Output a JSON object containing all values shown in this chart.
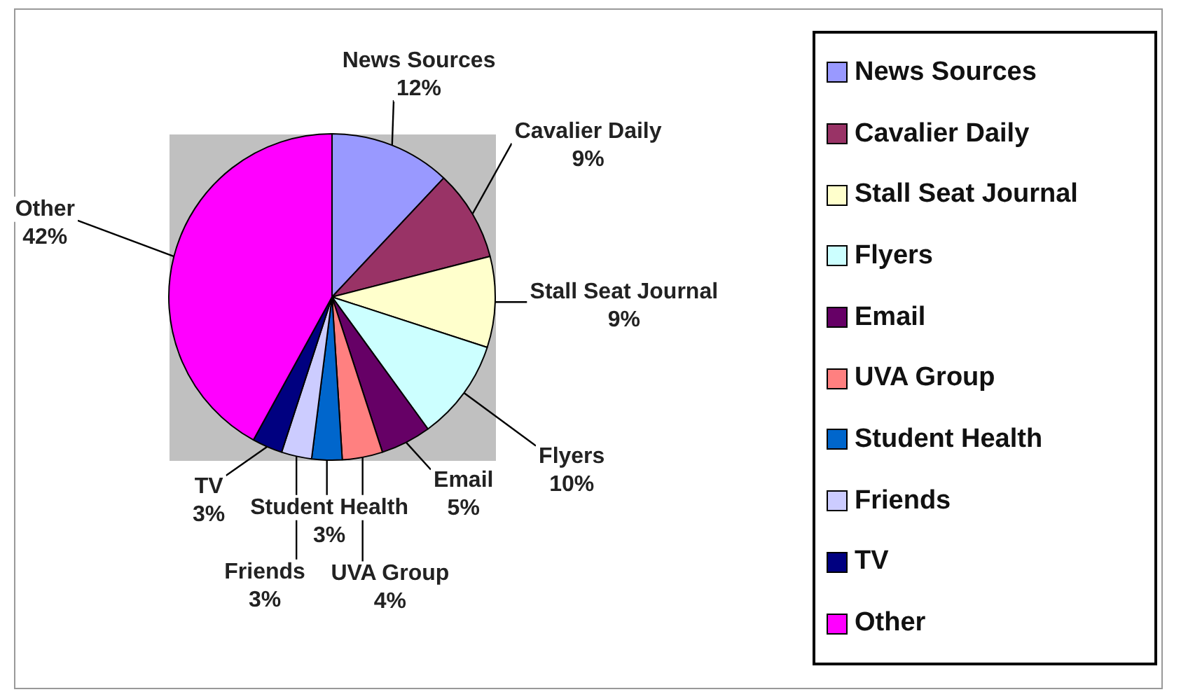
{
  "chart_data": {
    "type": "pie",
    "categories": [
      "News Sources",
      "Cavalier Daily",
      "Stall Seat Journal",
      "Flyers",
      "Email",
      "UVA Group",
      "Student Health",
      "Friends",
      "TV",
      "Other"
    ],
    "values": [
      12,
      9,
      9,
      10,
      5,
      4,
      3,
      3,
      3,
      42
    ],
    "colors": [
      "#9999ff",
      "#993366",
      "#ffffcc",
      "#ccffff",
      "#660066",
      "#ff8080",
      "#0066cc",
      "#ccccff",
      "#000080",
      "#ff00ff"
    ],
    "value_labels": [
      "12%",
      "9%",
      "9%",
      "10%",
      "5%",
      "4%",
      "3%",
      "3%",
      "3%",
      "42%"
    ],
    "legend": "right"
  }
}
